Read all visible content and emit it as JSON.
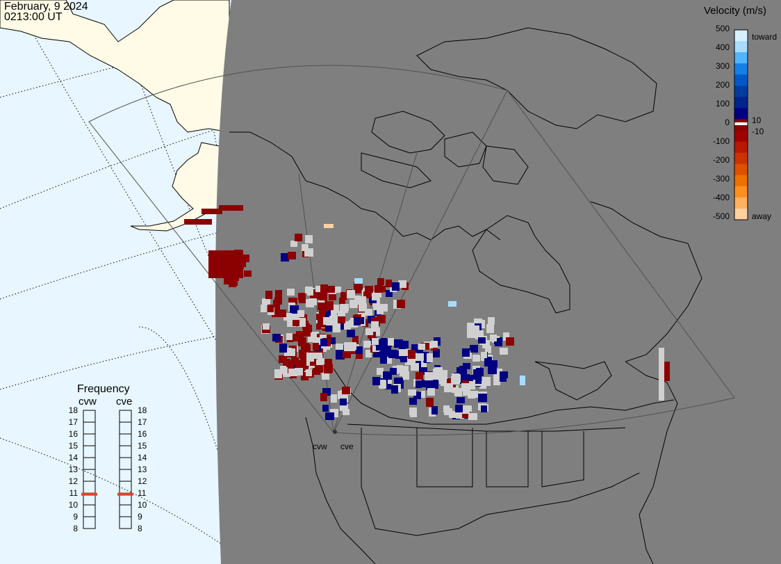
{
  "header": {
    "date": "February, 9 2024",
    "time": "0213:00 UT"
  },
  "colors": {
    "ocean": "#e8f6ff",
    "other_land": "#fffbe6",
    "night_side": "#7f7f7f",
    "gray_scatter": "#d0d0d0",
    "toward_dark": "#000080",
    "away_dark": "#8b0000"
  },
  "legend": {
    "title": "Velocity (m/s)",
    "ticks": [
      "500",
      "400",
      "300",
      "200",
      "100",
      "0",
      "-100",
      "-200",
      "-300",
      "-400",
      "-500"
    ],
    "small_pos": "10",
    "small_neg": "-10",
    "toward_label": "toward",
    "away_label": "away",
    "scale": [
      "#d7efff",
      "#a8dcff",
      "#52b4ff",
      "#1480e6",
      "#0058c8",
      "#003d9e",
      "#00248a",
      "#000080",
      "#8b0000",
      "#a00000",
      "#b81800",
      "#cc3300",
      "#e05000",
      "#f07000",
      "#ff9020",
      "#ffb060",
      "#ffd0a0"
    ]
  },
  "frequency": {
    "title": "Frequency",
    "radars": [
      "cvw",
      "cve"
    ],
    "ticks": [
      "18",
      "17",
      "16",
      "15",
      "14",
      "13",
      "12",
      "11",
      "10",
      "9",
      "8"
    ],
    "values_mhz": [
      10.9,
      10.9
    ],
    "indicator_color": "#e0442a"
  },
  "radar_sites": [
    "cvw",
    "cve"
  ]
}
